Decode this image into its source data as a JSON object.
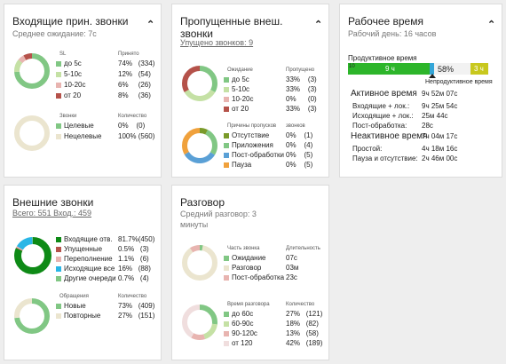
{
  "colors": {
    "c_green": "#81c784",
    "c_lgreen": "#c5e1a5",
    "c_pink": "#e8b4b0",
    "c_red": "#b5524a",
    "c_beige": "#ebe5cf",
    "c_dgreen": "#0e8a16",
    "c_blue": "#5aa0d6",
    "c_orange": "#f0a13c",
    "c_olive": "#7a9a2a",
    "c_yellow": "#c8c81e"
  },
  "incoming": {
    "title": "Входящие прин. звонки",
    "sub": "Среднее ожидание: 7с",
    "sl_h": "SL",
    "sl_c": "Принято",
    "rows": [
      {
        "l": "до 5с",
        "p": "74%",
        "n": "(334)"
      },
      {
        "l": "5-10с",
        "p": "12%",
        "n": "(54)"
      },
      {
        "l": "10-20с",
        "p": "6%",
        "n": "(26)"
      },
      {
        "l": "от 20",
        "p": "8%",
        "n": "(36)"
      }
    ],
    "t_h": "Звонки",
    "t_c": "Количество",
    "trows": [
      {
        "l": "Целевые",
        "p": "0%",
        "n": "(0)"
      },
      {
        "l": "Нецелевые",
        "p": "100%",
        "n": "(560)"
      }
    ]
  },
  "missed": {
    "title": "Пропущенные внеш. звонки",
    "sub": "Упущено звонков: 9",
    "w_h": "Ожидание",
    "w_c": "Пропущено",
    "rows": [
      {
        "l": "до 5с",
        "p": "33%",
        "n": "(3)"
      },
      {
        "l": "5-10с",
        "p": "33%",
        "n": "(3)"
      },
      {
        "l": "10-20с",
        "p": "0%",
        "n": "(0)"
      },
      {
        "l": "от 20",
        "p": "33%",
        "n": "(3)"
      }
    ],
    "r_h": "Причины пропусков",
    "r_c": "звонков",
    "rrows": [
      {
        "l": "Отсутствие",
        "p": "0%",
        "n": "(1)"
      },
      {
        "l": "Приложения",
        "p": "0%",
        "n": "(4)"
      },
      {
        "l": "Пост-обработки",
        "p": "0%",
        "n": "(5)"
      },
      {
        "l": "Пауза",
        "p": "0%",
        "n": "(5)"
      }
    ]
  },
  "work": {
    "title": "Рабочее время",
    "sub": "Рабочий день: 16 часов",
    "prod": "Продуктивное время",
    "t10": "10",
    "g": "9 ч",
    "pct": "58%",
    "y": "3 ч",
    "unprod": "Непродуктивное время",
    "a_l": "Активное время",
    "a_v": "9ч 52м 07с",
    "a_rows": [
      {
        "l": "Входящие + лок.:",
        "v": "9ч 25м 54с"
      },
      {
        "l": "Исходящие + лок.:",
        "v": "25м 44с"
      },
      {
        "l": "Пост-обработка:",
        "v": "28с"
      }
    ],
    "i_l": "Неактивное время",
    "i_v": "7ч 04м 17с",
    "i_rows": [
      {
        "l": "Простой:",
        "v": "4ч 18м 16с"
      },
      {
        "l": "Пауза и отсутствие:",
        "v": "2ч 46м 00с"
      }
    ]
  },
  "external": {
    "title": "Внешние звонки",
    "sub": "Всего: 551  Вход.: 459",
    "rows": [
      {
        "l": "Входящие отв.",
        "p": "81.7%",
        "n": "(450)"
      },
      {
        "l": "Упущенные",
        "p": "0.5%",
        "n": "(3)"
      },
      {
        "l": "Переполнение",
        "p": "1.1%",
        "n": "(6)"
      },
      {
        "l": "Исходящие все",
        "p": "16%",
        "n": "(88)"
      },
      {
        "l": "Другие очереди",
        "p": "0.7%",
        "n": "(4)"
      }
    ],
    "a_h": "Обращения",
    "a_c": "Количество",
    "arows": [
      {
        "l": "Новые",
        "p": "73%",
        "n": "(409)"
      },
      {
        "l": "Повторные",
        "p": "27%",
        "n": "(151)"
      }
    ]
  },
  "talk": {
    "title": "Разговор",
    "sub": "Средний разговор: 3 минуты",
    "p_h": "Часть звонка",
    "p_c": "Длительность",
    "prows": [
      {
        "l": "Ожидание",
        "v": "07с"
      },
      {
        "l": "Разговор",
        "v": "03м"
      },
      {
        "l": "Пост-обработка",
        "v": "23с"
      }
    ],
    "d_h": "Время разговора",
    "d_c": "Количество",
    "drows": [
      {
        "l": "до 60с",
        "p": "27%",
        "n": "(121)"
      },
      {
        "l": "60-90с",
        "p": "18%",
        "n": "(82)"
      },
      {
        "l": "90-120с",
        "p": "13%",
        "n": "(58)"
      },
      {
        "l": "от 120",
        "p": "42%",
        "n": "(189)"
      }
    ]
  }
}
